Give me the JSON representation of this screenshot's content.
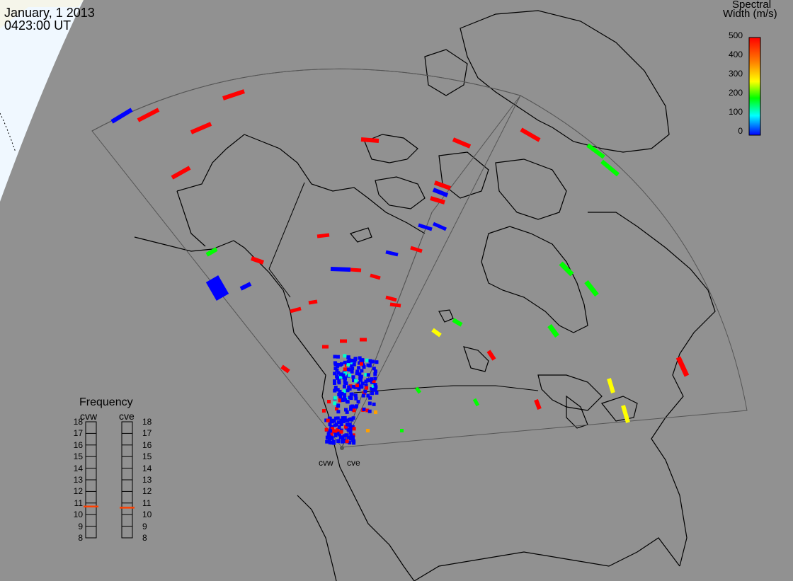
{
  "header": {
    "date": "January, 1 2013",
    "time": "0423:00 UT"
  },
  "colorbar": {
    "title_line1": "Spectral",
    "title_line2": "Width (m/s)",
    "ticks": [
      "500",
      "400",
      "300",
      "200",
      "100",
      "0"
    ],
    "colors": [
      "#ff0000",
      "#ff8000",
      "#ffff00",
      "#00ff00",
      "#00ffff",
      "#0000ff"
    ]
  },
  "frequency_panel": {
    "title": "Frequency",
    "radars": [
      "cvw",
      "cve"
    ],
    "scale": [
      "18",
      "17",
      "16",
      "15",
      "14",
      "13",
      "12",
      "11",
      "10",
      "9",
      "8"
    ],
    "cvw_value": 10.7,
    "cve_value": 10.6,
    "marker_color": "#ff4000"
  },
  "radar_sites": {
    "west_label": "cvw",
    "east_label": "cve"
  },
  "colors": {
    "background": "#919191",
    "daylight": "#f0f8ff",
    "land_outline": "#000000",
    "fov": "#555555"
  }
}
